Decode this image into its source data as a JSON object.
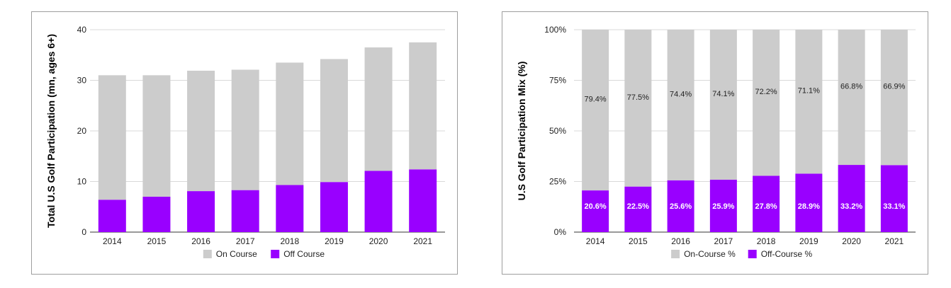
{
  "charts": [
    {
      "id": "left",
      "chart_data": {
        "type": "bar",
        "stacked": true,
        "title": "",
        "xlabel": "",
        "ylabel": "Total U.S Golf Participation (mn, ages 6+)",
        "categories": [
          "2014",
          "2015",
          "2016",
          "2017",
          "2018",
          "2019",
          "2020",
          "2021"
        ],
        "ylim": [
          0,
          40
        ],
        "yticks": [
          "0",
          "10",
          "20",
          "30",
          "40"
        ],
        "ytick_values": [
          0,
          10,
          20,
          30,
          40
        ],
        "grid": true,
        "legend_position": "bottom",
        "series": [
          {
            "name": "Off Course",
            "color": "#9900ff",
            "values": [
              6.4,
              7.0,
              8.1,
              8.3,
              9.3,
              9.9,
              12.1,
              12.4
            ]
          },
          {
            "name": "On Course",
            "color": "#cccccc",
            "values": [
              24.6,
              24.0,
              23.8,
              23.8,
              24.2,
              24.3,
              24.4,
              25.1
            ]
          }
        ],
        "legend": [
          {
            "name": "On Course",
            "color": "#cccccc"
          },
          {
            "name": "Off Course",
            "color": "#9900ff"
          }
        ]
      }
    },
    {
      "id": "right",
      "chart_data": {
        "type": "bar",
        "stacked": true,
        "percent": true,
        "title": "",
        "xlabel": "",
        "ylabel": "U.S Golf Participation Mix (%)",
        "categories": [
          "2014",
          "2015",
          "2016",
          "2017",
          "2018",
          "2019",
          "2020",
          "2021"
        ],
        "ylim": [
          0,
          100
        ],
        "yticks": [
          "0%",
          "25%",
          "50%",
          "75%",
          "100%"
        ],
        "ytick_values": [
          0,
          25,
          50,
          75,
          100
        ],
        "grid": true,
        "legend_position": "bottom",
        "series": [
          {
            "name": "Off-Course %",
            "color": "#9900ff",
            "values": [
              20.6,
              22.5,
              25.6,
              25.9,
              27.8,
              28.9,
              33.2,
              33.1
            ],
            "labels": [
              "20.6%",
              "22.5%",
              "25.6%",
              "25.9%",
              "27.8%",
              "28.9%",
              "33.2%",
              "33.1%"
            ]
          },
          {
            "name": "On-Course %",
            "color": "#cccccc",
            "values": [
              79.4,
              77.5,
              74.4,
              74.1,
              72.2,
              71.1,
              66.8,
              66.9
            ],
            "labels": [
              "79.4%",
              "77.5%",
              "74.4%",
              "74.1%",
              "72.2%",
              "71.1%",
              "66.8%",
              "66.9%"
            ]
          }
        ],
        "legend": [
          {
            "name": "On-Course %",
            "color": "#cccccc"
          },
          {
            "name": "Off-Course %",
            "color": "#9900ff"
          }
        ]
      }
    }
  ]
}
